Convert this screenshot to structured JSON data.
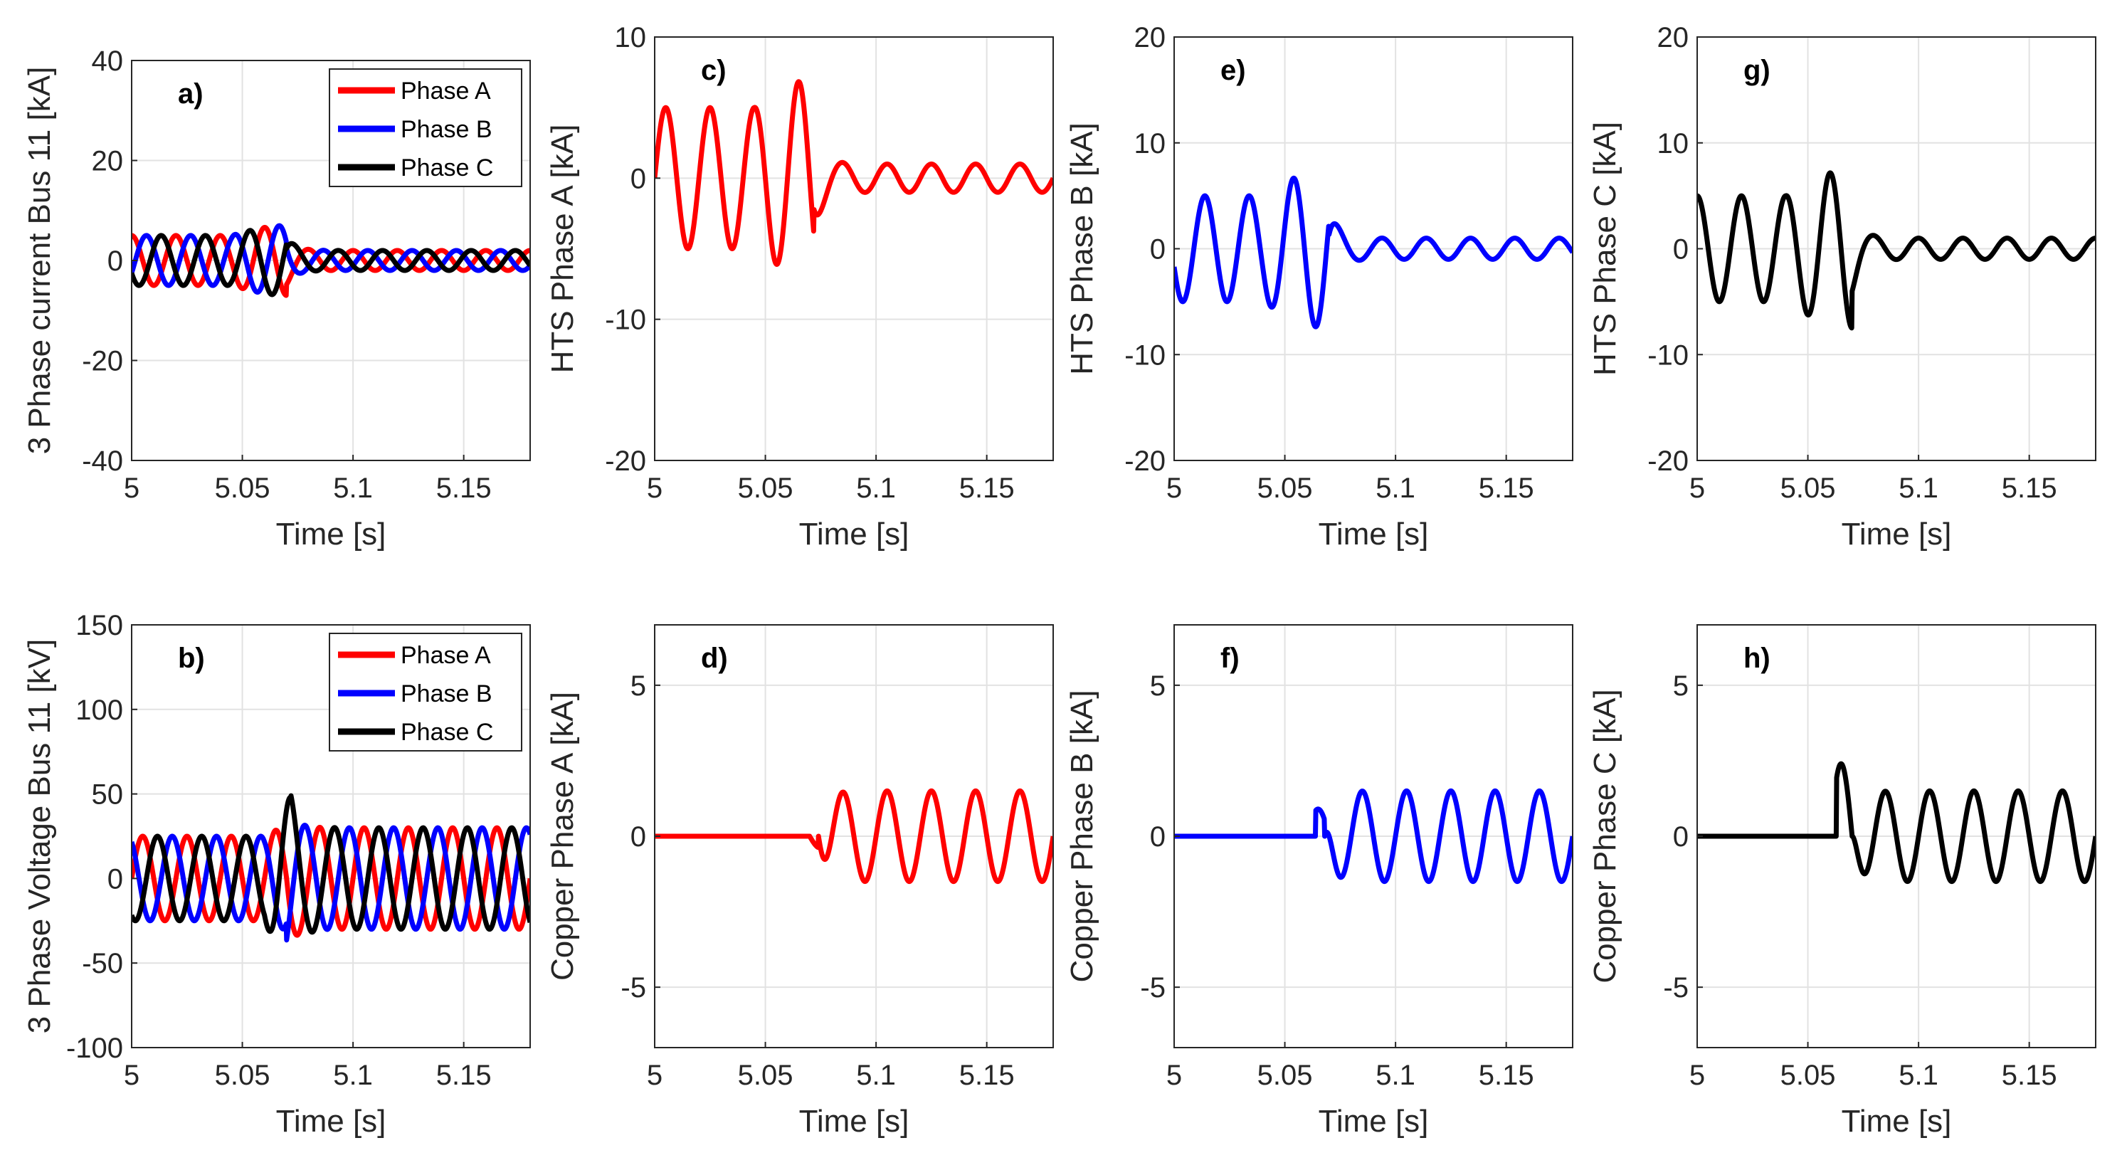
{
  "colors": {
    "phase_a": "#ff0000",
    "phase_b": "#0000ff",
    "phase_c": "#000000",
    "grid": "#e2e2e2",
    "axes": "#262626"
  },
  "chart_data": [
    {
      "id": "a",
      "panel_label": "a)",
      "type": "line",
      "ylabel": "3 Phase current Bus 11 [kA]",
      "xlabel": "Time [s]",
      "xlim": [
        5,
        5.18
      ],
      "ylim": [
        -40,
        40
      ],
      "xticks": [
        5,
        5.05,
        5.1,
        5.15
      ],
      "xtick_labels": [
        "5",
        "5.05",
        "5.1",
        "5.15"
      ],
      "yticks": [
        -40,
        -20,
        0,
        20,
        40
      ],
      "ytick_labels": [
        "-40",
        "-20",
        "0",
        "20",
        "40"
      ],
      "legend": [
        "Phase A",
        "Phase B",
        "Phase C"
      ],
      "legend_position": "top-right",
      "series": [
        {
          "name": "Phase A",
          "color": "#ff0000",
          "freq_hz": 50,
          "phase_deg": 90,
          "pre_amp": 5,
          "fault_t": 5.055,
          "fault_peak": 7,
          "fault_end": 5.07,
          "post_amp": 2,
          "offset": 0
        },
        {
          "name": "Phase B",
          "color": "#0000ff",
          "freq_hz": 50,
          "phase_deg": -30,
          "pre_amp": 5,
          "fault_t": 5.055,
          "fault_peak": 7,
          "fault_end": 5.07,
          "post_amp": 2,
          "offset": 0
        },
        {
          "name": "Phase C",
          "color": "#000000",
          "freq_hz": 50,
          "phase_deg": 210,
          "pre_amp": 5,
          "fault_t": 5.055,
          "fault_peak": 7,
          "fault_end": 5.07,
          "post_amp": 2,
          "offset": 0
        }
      ]
    },
    {
      "id": "b",
      "panel_label": "b)",
      "type": "line",
      "ylabel": "3 Phase Voltage  Bus 11 [kV]",
      "xlabel": "Time [s]",
      "xlim": [
        5,
        5.18
      ],
      "ylim": [
        -100,
        150
      ],
      "xticks": [
        5,
        5.05,
        5.1,
        5.15
      ],
      "xtick_labels": [
        "5",
        "5.05",
        "5.1",
        "5.15"
      ],
      "yticks": [
        -100,
        -50,
        0,
        50,
        100,
        150
      ],
      "ytick_labels": [
        "-100",
        "-50",
        "0",
        "50",
        "100",
        "150"
      ],
      "legend": [
        "Phase A",
        "Phase B",
        "Phase C"
      ],
      "legend_position": "top-right",
      "series": [
        {
          "name": "Phase A",
          "color": "#ff0000",
          "freq_hz": 50,
          "phase_deg": 0,
          "pre_amp": 25,
          "fault_t": 5.07,
          "fault_peak": 30,
          "fault_end": 5.07,
          "post_amp": 30,
          "offset": 0
        },
        {
          "name": "Phase B",
          "color": "#0000ff",
          "freq_hz": 50,
          "phase_deg": 120,
          "pre_amp": 25,
          "fault_t": 5.07,
          "fault_peak": 30,
          "fault_end": 5.07,
          "post_amp": 30,
          "offset": 0
        },
        {
          "name": "Phase C",
          "color": "#000000",
          "freq_hz": 50,
          "phase_deg": -120,
          "pre_amp": 25,
          "fault_t": 5.07,
          "fault_peak": 48,
          "fault_end": 5.072,
          "post_amp": 30,
          "offset": 0
        }
      ]
    },
    {
      "id": "c",
      "panel_label": "c)",
      "type": "line",
      "ylabel": "HTS Phase A [kA]",
      "xlabel": "Time [s]",
      "xlim": [
        5,
        5.18
      ],
      "ylim": [
        -20,
        10
      ],
      "xticks": [
        5,
        5.05,
        5.1,
        5.15
      ],
      "xtick_labels": [
        "5",
        "5.05",
        "5.1",
        "5.15"
      ],
      "yticks": [
        -20,
        -10,
        0,
        10
      ],
      "ytick_labels": [
        "-20",
        "-10",
        "0",
        "10"
      ],
      "series": [
        {
          "name": "HTS Phase A",
          "color": "#ff0000",
          "freq_hz": 50,
          "phase_deg": 0,
          "pre_amp": 5,
          "fault_t": 5.055,
          "fault_peak": 7,
          "fault_end": 5.072,
          "post_amp": 1,
          "offset": 0
        }
      ]
    },
    {
      "id": "d",
      "panel_label": "d)",
      "type": "line",
      "ylabel": "Copper Phase A [kA]",
      "xlabel": "Time [s]",
      "xlim": [
        5,
        5.18
      ],
      "ylim": [
        -7,
        7
      ],
      "xticks": [
        5,
        5.05,
        5.1,
        5.15
      ],
      "xtick_labels": [
        "5",
        "5.05",
        "5.1",
        "5.15"
      ],
      "yticks": [
        -5,
        0,
        5
      ],
      "ytick_labels": [
        "-5",
        "0",
        "5"
      ],
      "series": [
        {
          "name": "Copper Phase A",
          "color": "#ff0000",
          "freq_hz": 50,
          "phase_deg": 0,
          "pre_amp": 0,
          "fault_t": 5.07,
          "fault_peak": 0.4,
          "fault_end": 5.074,
          "post_amp": 1.5,
          "offset": 0
        }
      ]
    },
    {
      "id": "e",
      "panel_label": "e)",
      "type": "line",
      "ylabel": "HTS Phase B [kA]",
      "xlabel": "Time [s]",
      "xlim": [
        5,
        5.18
      ],
      "ylim": [
        -20,
        20
      ],
      "xticks": [
        5,
        5.05,
        5.1,
        5.15
      ],
      "xtick_labels": [
        "5",
        "5.05",
        "5.1",
        "5.15"
      ],
      "yticks": [
        -20,
        -10,
        0,
        10,
        20
      ],
      "ytick_labels": [
        "-20",
        "-10",
        "0",
        "10",
        "20"
      ],
      "series": [
        {
          "name": "HTS Phase B",
          "color": "#0000ff",
          "freq_hz": 50,
          "phase_deg": 200,
          "pre_amp": 5,
          "fault_t": 5.05,
          "fault_peak": 7.5,
          "fault_end": 5.07,
          "post_amp": 1,
          "offset": 0
        }
      ]
    },
    {
      "id": "f",
      "panel_label": "f)",
      "type": "line",
      "ylabel": "Copper Phase B [kA]",
      "xlabel": "Time [s]",
      "xlim": [
        5,
        5.18
      ],
      "ylim": [
        -7,
        7
      ],
      "xticks": [
        5,
        5.05,
        5.1,
        5.15
      ],
      "xtick_labels": [
        "5",
        "5.05",
        "5.1",
        "5.15"
      ],
      "yticks": [
        -5,
        0,
        5
      ],
      "ytick_labels": [
        "-5",
        "0",
        "5"
      ],
      "series": [
        {
          "name": "Copper Phase B",
          "color": "#0000ff",
          "freq_hz": 50,
          "phase_deg": 0,
          "pre_amp": 0,
          "fault_t": 5.064,
          "fault_peak": 0.9,
          "fault_end": 5.068,
          "post_amp": 1.5,
          "offset": 0
        }
      ]
    },
    {
      "id": "g",
      "panel_label": "g)",
      "type": "line",
      "ylabel": "HTS Phase C [kA]",
      "xlabel": "Time [s]",
      "xlim": [
        5,
        5.18
      ],
      "ylim": [
        -20,
        20
      ],
      "xticks": [
        5,
        5.05,
        5.1,
        5.15
      ],
      "xtick_labels": [
        "5",
        "5.05",
        "5.1",
        "5.15"
      ],
      "yticks": [
        -20,
        -10,
        0,
        10,
        20
      ],
      "ytick_labels": [
        "-20",
        "-10",
        "0",
        "10",
        "20"
      ],
      "series": [
        {
          "name": "HTS Phase C",
          "color": "#000000",
          "freq_hz": 50,
          "phase_deg": 90,
          "pre_amp": 5,
          "fault_t": 5.05,
          "fault_peak": 7.5,
          "fault_end": 5.07,
          "post_amp": 1,
          "offset": 0
        }
      ]
    },
    {
      "id": "h",
      "panel_label": "h)",
      "type": "line",
      "ylabel": "Copper Phase C [kA]",
      "xlabel": "Time [s]",
      "xlim": [
        5,
        5.18
      ],
      "ylim": [
        -7,
        7
      ],
      "xticks": [
        5,
        5.05,
        5.1,
        5.15
      ],
      "xtick_labels": [
        "5",
        "5.05",
        "5.1",
        "5.15"
      ],
      "yticks": [
        -5,
        0,
        5
      ],
      "ytick_labels": [
        "-5",
        "0",
        "5"
      ],
      "series": [
        {
          "name": "Copper Phase C",
          "color": "#000000",
          "freq_hz": 50,
          "phase_deg": 0,
          "pre_amp": 0,
          "fault_t": 5.063,
          "fault_peak": 2.4,
          "fault_end": 5.07,
          "post_amp": 1.5,
          "offset": 0
        }
      ]
    }
  ]
}
